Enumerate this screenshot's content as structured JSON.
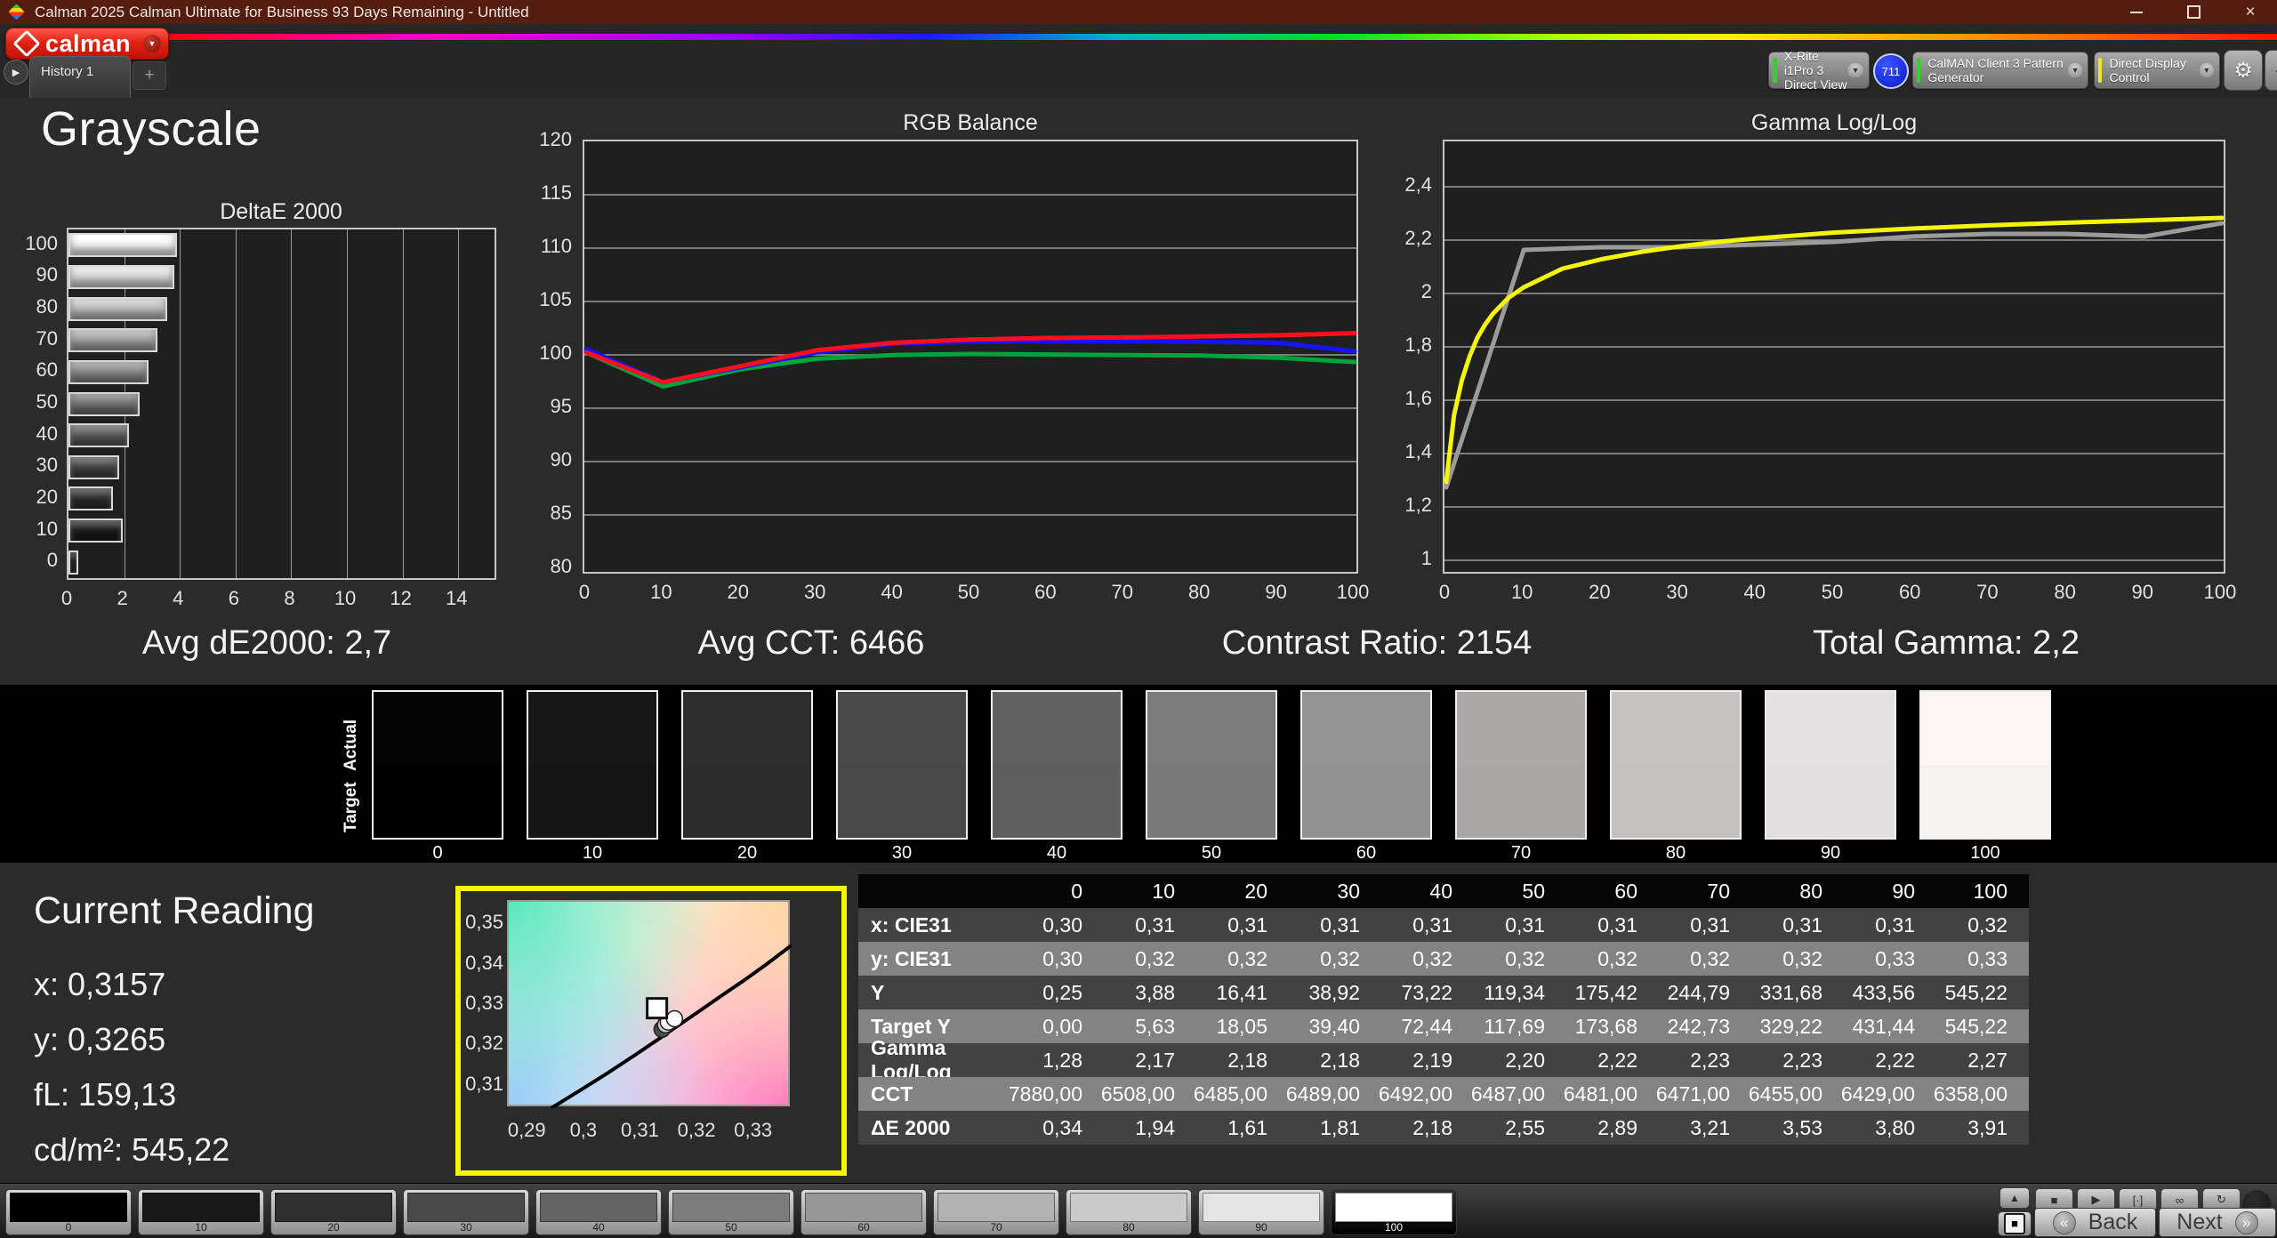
{
  "window": {
    "title": "Calman 2025 Calman Ultimate for Business 93 Days Remaining  - Untitled"
  },
  "header": {
    "logo_text": "calman",
    "history_tab": "History 1",
    "add_tab": "+",
    "meter_button": {
      "line1": "X-Rite i1Pro 3",
      "line2": "Direct View",
      "status_color": "#35d02b"
    },
    "meter_badge": "711",
    "source_button": {
      "label": "CalMAN Client 3 Pattern Generator",
      "status_color": "#35d02b"
    },
    "display_button": {
      "label": "Direct Display Control",
      "status_color": "#e8e82a"
    }
  },
  "page": {
    "title": "Grayscale"
  },
  "stats": [
    "Avg dE2000: 2,7",
    "Avg CCT: 6466",
    "Contrast Ratio: 2154",
    "Total Gamma: 2,2"
  ],
  "chart_data": [
    {
      "id": "deltae",
      "type": "bar",
      "orientation": "horizontal",
      "title": "DeltaE 2000",
      "categories": [
        "100",
        "90",
        "80",
        "70",
        "60",
        "50",
        "40",
        "30",
        "20",
        "10",
        "0"
      ],
      "values": [
        3.91,
        3.8,
        3.53,
        3.21,
        2.89,
        2.55,
        2.18,
        1.81,
        1.61,
        1.94,
        0.34
      ],
      "bar_colors": [
        "#fbfbfb",
        "#dedede",
        "#c2c2c2",
        "#a7a7a7",
        "#8d8d8d",
        "#747474",
        "#5c5c5c",
        "#454545",
        "#2f2f2f",
        "#1c1c1c",
        "#0a0a0a"
      ],
      "xlim": [
        0,
        15.3
      ],
      "xticks": [
        0,
        2,
        4,
        6,
        8,
        10,
        12,
        14
      ],
      "grid": "vertical"
    },
    {
      "id": "rgb_balance",
      "type": "line",
      "title": "RGB Balance",
      "x": [
        0,
        10,
        20,
        30,
        40,
        50,
        60,
        70,
        80,
        90,
        100
      ],
      "series": [
        {
          "name": "Green",
          "color": "#00a33c",
          "values": [
            100.4,
            97.2,
            98.8,
            99.8,
            100.15,
            100.25,
            100.2,
            100.15,
            100.1,
            99.9,
            99.5
          ]
        },
        {
          "name": "Blue",
          "color": "#1414ff",
          "values": [
            100.7,
            97.6,
            99.0,
            100.4,
            101.2,
            101.4,
            101.45,
            101.45,
            101.4,
            101.3,
            100.5
          ]
        },
        {
          "name": "Red",
          "color": "#ff0f1e",
          "values": [
            100.4,
            97.6,
            99.1,
            100.6,
            101.3,
            101.6,
            101.75,
            101.8,
            101.9,
            102.0,
            102.2
          ]
        }
      ],
      "ylim": [
        80,
        120
      ],
      "yticks": [
        120,
        115,
        110,
        105,
        100,
        95,
        90,
        85,
        80
      ],
      "xticks": [
        0,
        10,
        20,
        30,
        40,
        50,
        60,
        70,
        80,
        90,
        100
      ],
      "grid": "horizontal"
    },
    {
      "id": "gamma",
      "type": "line",
      "title": "Gamma Log/Log",
      "series": [
        {
          "name": "Measured",
          "color": "#9b9b9b",
          "x": [
            0,
            10,
            20,
            30,
            40,
            50,
            60,
            70,
            80,
            90,
            100
          ],
          "values": [
            1.28,
            2.17,
            2.18,
            2.18,
            2.19,
            2.2,
            2.22,
            2.23,
            2.23,
            2.22,
            2.27
          ]
        },
        {
          "name": "Target",
          "color": "#f5f50a",
          "x": [
            0,
            1,
            2,
            3,
            4,
            5,
            6,
            8,
            10,
            15,
            20,
            25,
            30,
            35,
            40,
            50,
            60,
            70,
            80,
            90,
            100
          ],
          "values": [
            1.3,
            1.55,
            1.68,
            1.77,
            1.84,
            1.89,
            1.93,
            1.99,
            2.03,
            2.1,
            2.135,
            2.162,
            2.183,
            2.2,
            2.213,
            2.235,
            2.25,
            2.262,
            2.272,
            2.281,
            2.29
          ]
        }
      ],
      "ylim": [
        0.97,
        2.57
      ],
      "yticks": [
        {
          "v": 2.4,
          "label": "2,4"
        },
        {
          "v": 2.2,
          "label": "2,2"
        },
        {
          "v": 2.0,
          "label": "2"
        },
        {
          "v": 1.8,
          "label": "1,8"
        },
        {
          "v": 1.6,
          "label": "1,6"
        },
        {
          "v": 1.4,
          "label": "1,4"
        },
        {
          "v": 1.2,
          "label": "1,2"
        },
        {
          "v": 1.0,
          "label": "1"
        }
      ],
      "xticks": [
        0,
        10,
        20,
        30,
        40,
        50,
        60,
        70,
        80,
        90,
        100
      ],
      "grid": "horizontal"
    },
    {
      "id": "cie",
      "type": "scatter",
      "title": "",
      "xlim": [
        0.2865,
        0.3365
      ],
      "ylim": [
        0.3045,
        0.3555
      ],
      "xticks": [
        {
          "v": 0.29,
          "label": "0,29"
        },
        {
          "v": 0.3,
          "label": "0,3"
        },
        {
          "v": 0.31,
          "label": "0,31"
        },
        {
          "v": 0.32,
          "label": "0,32"
        },
        {
          "v": 0.33,
          "label": "0,33"
        }
      ],
      "yticks": [
        {
          "v": 0.35,
          "label": "0,35"
        },
        {
          "v": 0.34,
          "label": "0,34"
        },
        {
          "v": 0.33,
          "label": "0,33"
        },
        {
          "v": 0.32,
          "label": "0,32"
        },
        {
          "v": 0.31,
          "label": "0,31"
        }
      ],
      "locus": [
        [
          0.294,
          0.3045
        ],
        [
          0.299,
          0.3088
        ],
        [
          0.304,
          0.3132
        ],
        [
          0.309,
          0.3178
        ],
        [
          0.3127,
          0.3213
        ],
        [
          0.316,
          0.3245
        ],
        [
          0.32,
          0.3283
        ],
        [
          0.324,
          0.3322
        ],
        [
          0.328,
          0.336
        ],
        [
          0.332,
          0.34
        ],
        [
          0.3365,
          0.3448
        ]
      ],
      "target_square": {
        "x": 0.3127,
        "y": 0.3292
      },
      "points": [
        {
          "x": 0.3136,
          "y": 0.324,
          "fill": "#4a4a4a"
        },
        {
          "x": 0.3142,
          "y": 0.3251,
          "fill": "#c9c9c9"
        },
        {
          "x": 0.3147,
          "y": 0.3258,
          "fill": "#f2f2f2"
        },
        {
          "x": 0.3158,
          "y": 0.3266,
          "fill": "#ffffff"
        }
      ]
    }
  ],
  "grayscale_ramp": {
    "actual_label": "Actual",
    "target_label": "Target",
    "steps": [
      {
        "level": "0",
        "actual": "#040404",
        "target": "#010101"
      },
      {
        "level": "10",
        "actual": "#171717",
        "target": "#151515"
      },
      {
        "level": "20",
        "actual": "#2e2e2e",
        "target": "#2c2c2c"
      },
      {
        "level": "30",
        "actual": "#4a4a4a",
        "target": "#484848"
      },
      {
        "level": "40",
        "actual": "#606060",
        "target": "#5e5e5e"
      },
      {
        "level": "50",
        "actual": "#7b7b7b",
        "target": "#797979"
      },
      {
        "level": "60",
        "actual": "#939393",
        "target": "#919191"
      },
      {
        "level": "70",
        "actual": "#aba8a6",
        "target": "#a9a6a4"
      },
      {
        "level": "80",
        "actual": "#c5c2c2",
        "target": "#c3c0c0"
      },
      {
        "level": "90",
        "actual": "#e3e1e1",
        "target": "#e1dfdf"
      },
      {
        "level": "100",
        "actual": "#fcf7f5",
        "target": "#f6f2f0"
      }
    ]
  },
  "current_reading": {
    "title": "Current Reading",
    "lines": [
      "x: 0,3157",
      "y: 0,3265",
      "fL: 159,13",
      "cd/m²: 545,22"
    ]
  },
  "table": {
    "columns": [
      "0",
      "10",
      "20",
      "30",
      "40",
      "50",
      "60",
      "70",
      "80",
      "90",
      "100"
    ],
    "rows": [
      {
        "label": "x: CIE31",
        "values": [
          "0,30",
          "0,31",
          "0,31",
          "0,31",
          "0,31",
          "0,31",
          "0,31",
          "0,31",
          "0,31",
          "0,31",
          "0,32"
        ]
      },
      {
        "label": "y: CIE31",
        "values": [
          "0,30",
          "0,32",
          "0,32",
          "0,32",
          "0,32",
          "0,32",
          "0,32",
          "0,32",
          "0,32",
          "0,33",
          "0,33"
        ]
      },
      {
        "label": "Y",
        "values": [
          "0,25",
          "3,88",
          "16,41",
          "38,92",
          "73,22",
          "119,34",
          "175,42",
          "244,79",
          "331,68",
          "433,56",
          "545,22"
        ]
      },
      {
        "label": "Target Y",
        "values": [
          "0,00",
          "5,63",
          "18,05",
          "39,40",
          "72,44",
          "117,69",
          "173,68",
          "242,73",
          "329,22",
          "431,44",
          "545,22"
        ]
      },
      {
        "label": "Gamma Log/Log",
        "values": [
          "1,28",
          "2,17",
          "2,18",
          "2,18",
          "2,19",
          "2,20",
          "2,22",
          "2,23",
          "2,23",
          "2,22",
          "2,27"
        ]
      },
      {
        "label": "CCT",
        "values": [
          "7880,00",
          "6508,00",
          "6485,00",
          "6489,00",
          "6492,00",
          "6487,00",
          "6481,00",
          "6471,00",
          "6455,00",
          "6429,00",
          "6358,00"
        ]
      },
      {
        "label": "ΔE 2000",
        "values": [
          "0,34",
          "1,94",
          "1,61",
          "1,81",
          "2,18",
          "2,55",
          "2,89",
          "3,21",
          "3,53",
          "3,80",
          "3,91"
        ]
      }
    ]
  },
  "pattern_bar": {
    "selected_index": 10,
    "buttons": [
      {
        "label": "0",
        "color": "#000000"
      },
      {
        "label": "10",
        "color": "#191919"
      },
      {
        "label": "20",
        "color": "#2f2f2f"
      },
      {
        "label": "30",
        "color": "#4a4a4a"
      },
      {
        "label": "40",
        "color": "#646464"
      },
      {
        "label": "50",
        "color": "#7d7d7d"
      },
      {
        "label": "60",
        "color": "#979797"
      },
      {
        "label": "70",
        "color": "#b1b1b1"
      },
      {
        "label": "80",
        "color": "#cacaca"
      },
      {
        "label": "90",
        "color": "#e4e4e4"
      },
      {
        "label": "100",
        "color": "#ffffff"
      }
    ]
  },
  "transport": {
    "icons": [
      {
        "name": "stop-icon",
        "glyph": "■"
      },
      {
        "name": "play-icon",
        "glyph": "▶"
      },
      {
        "name": "pattern-size-icon",
        "glyph": "[·]"
      },
      {
        "name": "continuous-icon",
        "glyph": "∞"
      },
      {
        "name": "refresh-icon",
        "glyph": "↻"
      }
    ],
    "up_glyph": "▲",
    "square_glyph": "■"
  },
  "nav": {
    "back": "Back",
    "next": "Next",
    "back_chev": "«",
    "next_chev": "»"
  }
}
